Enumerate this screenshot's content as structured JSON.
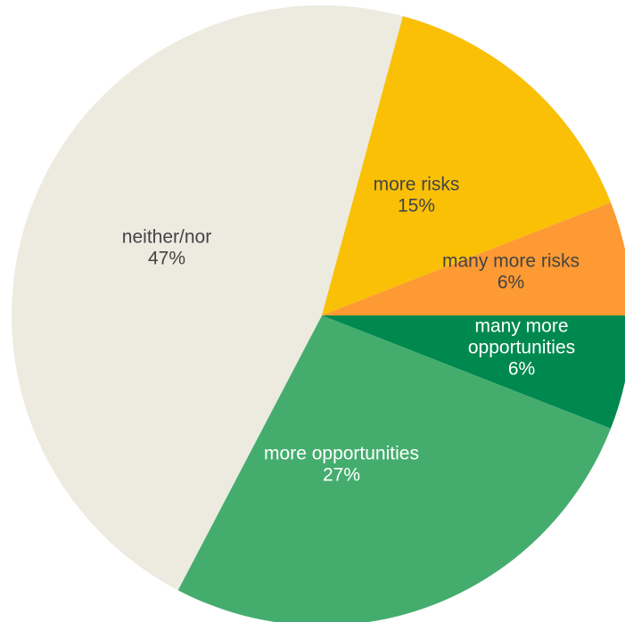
{
  "chart_data": {
    "type": "pie",
    "title": "",
    "start_direction": "east",
    "order": "clockwise",
    "slices": [
      {
        "label": "many more opportunities",
        "value": 6,
        "value_label": "6%",
        "color": "#00894f",
        "label_lines": [
          "many more",
          "opportunities",
          "6%"
        ],
        "label_color": "#ffffff"
      },
      {
        "label": "more opportunities",
        "value": 27,
        "value_label": "27%",
        "color": "#44ad6e",
        "label_lines": [
          "more opportunities",
          "27%"
        ],
        "label_color": "#ffffff"
      },
      {
        "label": "neither/nor",
        "value": 47,
        "value_label": "47%",
        "color": "#edeae0",
        "label_lines": [
          "neither/nor",
          "47%"
        ],
        "label_color": "#444444"
      },
      {
        "label": "more risks",
        "value": 15,
        "value_label": "15%",
        "color": "#f9c006",
        "label_lines": [
          "more risks",
          "15%"
        ],
        "label_color": "#444444"
      },
      {
        "label": "many more risks",
        "value": 6,
        "value_label": "6%",
        "color": "#fd9a33",
        "label_lines": [
          "many more risks",
          "6%"
        ],
        "label_color": "#444444"
      }
    ]
  }
}
